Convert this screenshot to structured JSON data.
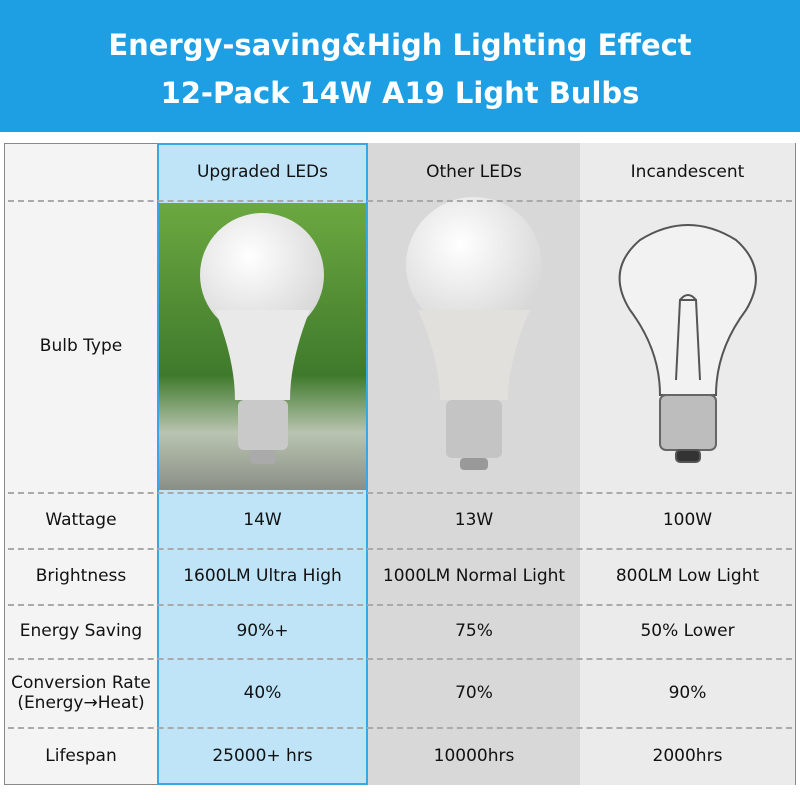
{
  "header": {
    "title": [
      "Energy-saving&High Lighting Effect",
      "12-Pack 14W A19 Light Bulbs"
    ]
  },
  "table": {
    "columns": [
      "Upgraded LEDs",
      "Other LEDs",
      "Incandescent"
    ],
    "bulb_row_label": "Bulb Type",
    "rows": [
      {
        "label": "Wattage",
        "cells": [
          "14W",
          "13W",
          "100W"
        ]
      },
      {
        "label": "Brightness",
        "cells": [
          "1600LM Ultra High",
          "1000LM Normal Light",
          "800LM Low Light"
        ]
      },
      {
        "label": "Energy Saving",
        "cells": [
          "90%+",
          "75%",
          "50% Lower"
        ]
      },
      {
        "label": [
          "Conversion Rate",
          "(Energy→Heat)"
        ],
        "cells": [
          "40%",
          "70%",
          "90%"
        ]
      },
      {
        "label": "Lifespan",
        "cells": [
          "25000+ hrs",
          "10000hrs",
          "2000hrs"
        ]
      }
    ]
  }
}
